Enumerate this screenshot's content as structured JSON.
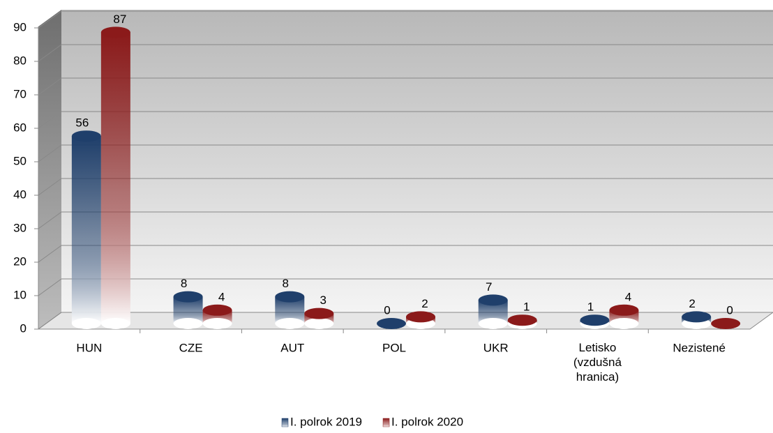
{
  "chart_data": {
    "type": "bar",
    "categories": [
      "HUN",
      "CZE",
      "AUT",
      "POL",
      "UKR",
      "Letisko (vzdušná hranica)",
      "Nezistené"
    ],
    "series": [
      {
        "name": "I. polrok 2019",
        "color": "#1f3f6b",
        "values": [
          56,
          8,
          8,
          0,
          7,
          1,
          2
        ]
      },
      {
        "name": "I. polrok 2020",
        "color": "#8b1a1a",
        "values": [
          87,
          4,
          3,
          2,
          1,
          4,
          0
        ]
      }
    ],
    "ylim": [
      0,
      90
    ],
    "yticks": [
      0,
      10,
      20,
      30,
      40,
      50,
      60,
      70,
      80,
      90
    ],
    "grid": true,
    "legend": "bottom"
  }
}
